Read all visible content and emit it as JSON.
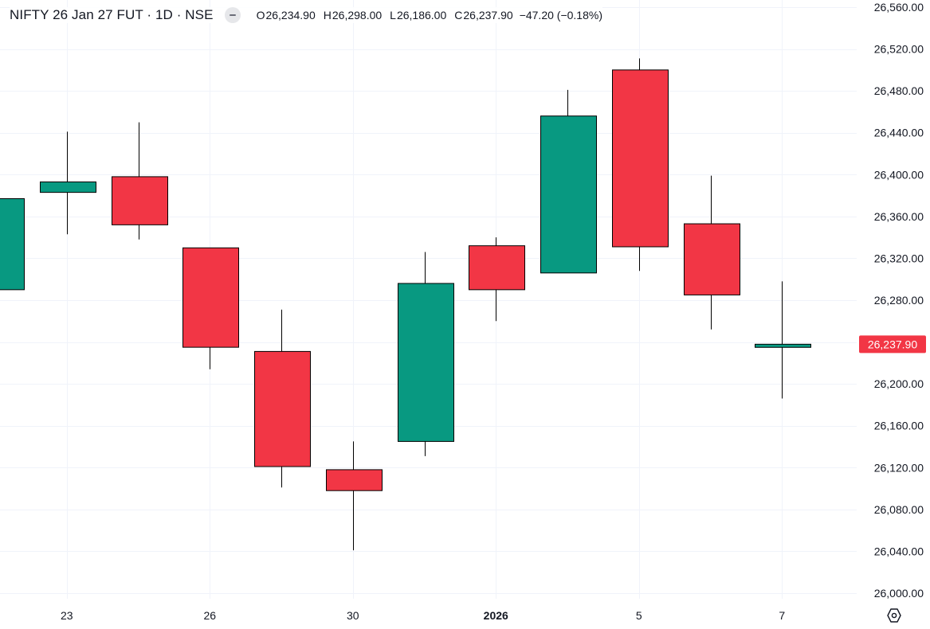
{
  "legend": {
    "title": "NIFTY 26 Jan 27 FUT · 1D · NSE",
    "open_label": "O",
    "open": "26,234.90",
    "high_label": "H",
    "high": "26,298.00",
    "low_label": "L",
    "low": "26,186.00",
    "close_label": "C",
    "close": "26,237.90",
    "change": "−47.20 (−0.18%)"
  },
  "colors": {
    "up": "#089981",
    "down": "#f23645",
    "grid": "#f0f3fa",
    "axis_text": "#131722",
    "price_label_bg": "#f23645"
  },
  "icons": {
    "legend_toggle": "minus-circle-icon",
    "axis_settings": "gear-hexagon-icon"
  },
  "chart_data": {
    "type": "candlestick",
    "y_axis": {
      "ticks": [
        "26,000.00",
        "26,040.00",
        "26,080.00",
        "26,120.00",
        "26,160.00",
        "26,200.00",
        "26,240.00",
        "26,280.00",
        "26,320.00",
        "26,360.00",
        "26,400.00",
        "26,440.00",
        "26,480.00",
        "26,520.00",
        "26,560.00"
      ],
      "tick_values": [
        26000,
        26040,
        26080,
        26120,
        26160,
        26200,
        26240,
        26280,
        26320,
        26360,
        26400,
        26440,
        26480,
        26520,
        26560
      ],
      "range": [
        25990,
        26570
      ]
    },
    "x_axis": {
      "labels": [
        {
          "text": "23",
          "bar": 1,
          "bold": false
        },
        {
          "text": "26",
          "bar": 3,
          "bold": false
        },
        {
          "text": "30",
          "bar": 5,
          "bold": false
        },
        {
          "text": "2026",
          "bar": 7,
          "bold": true
        },
        {
          "text": "5",
          "bar": 9,
          "bold": false
        },
        {
          "text": "7",
          "bar": 11,
          "bold": false
        }
      ]
    },
    "current_price": {
      "value": 26237.9,
      "label": "26,237.90"
    },
    "candles": [
      {
        "open": 26290,
        "high": 26378,
        "low": 26290,
        "close": 26377
      },
      {
        "open": 26383,
        "high": 26441,
        "low": 26343,
        "close": 26393
      },
      {
        "open": 26398,
        "high": 26450,
        "low": 26338,
        "close": 26352
      },
      {
        "open": 26330,
        "high": 26330,
        "low": 26214,
        "close": 26235
      },
      {
        "open": 26231,
        "high": 26271,
        "low": 26101,
        "close": 26121
      },
      {
        "open": 26118,
        "high": 26145,
        "low": 26041,
        "close": 26098
      },
      {
        "open": 26145,
        "high": 26326,
        "low": 26131,
        "close": 26296
      },
      {
        "open": 26332,
        "high": 26340,
        "low": 26260,
        "close": 26290
      },
      {
        "open": 26306,
        "high": 26481,
        "low": 26306,
        "close": 26456
      },
      {
        "open": 26500,
        "high": 26511,
        "low": 26308,
        "close": 26331
      },
      {
        "open": 26353,
        "high": 26399,
        "low": 26252,
        "close": 26285
      },
      {
        "open": 26234.9,
        "high": 26298,
        "low": 26186,
        "close": 26237.9
      }
    ]
  }
}
